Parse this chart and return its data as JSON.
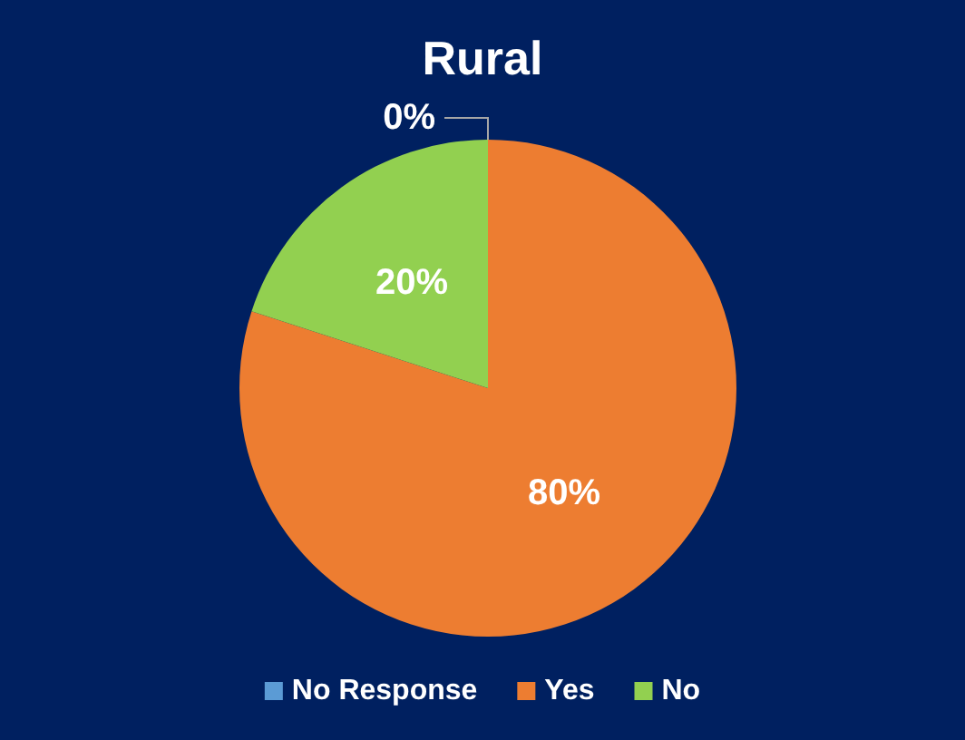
{
  "chart_data": {
    "type": "pie",
    "title": "Rural",
    "categories": [
      "No Response",
      "Yes",
      "No"
    ],
    "values": [
      0,
      80,
      20
    ],
    "colors": [
      "#5b9bd5",
      "#ed7d31",
      "#92d050"
    ],
    "value_labels": [
      "0%",
      "80%",
      "20%"
    ],
    "legend": "bottom"
  }
}
